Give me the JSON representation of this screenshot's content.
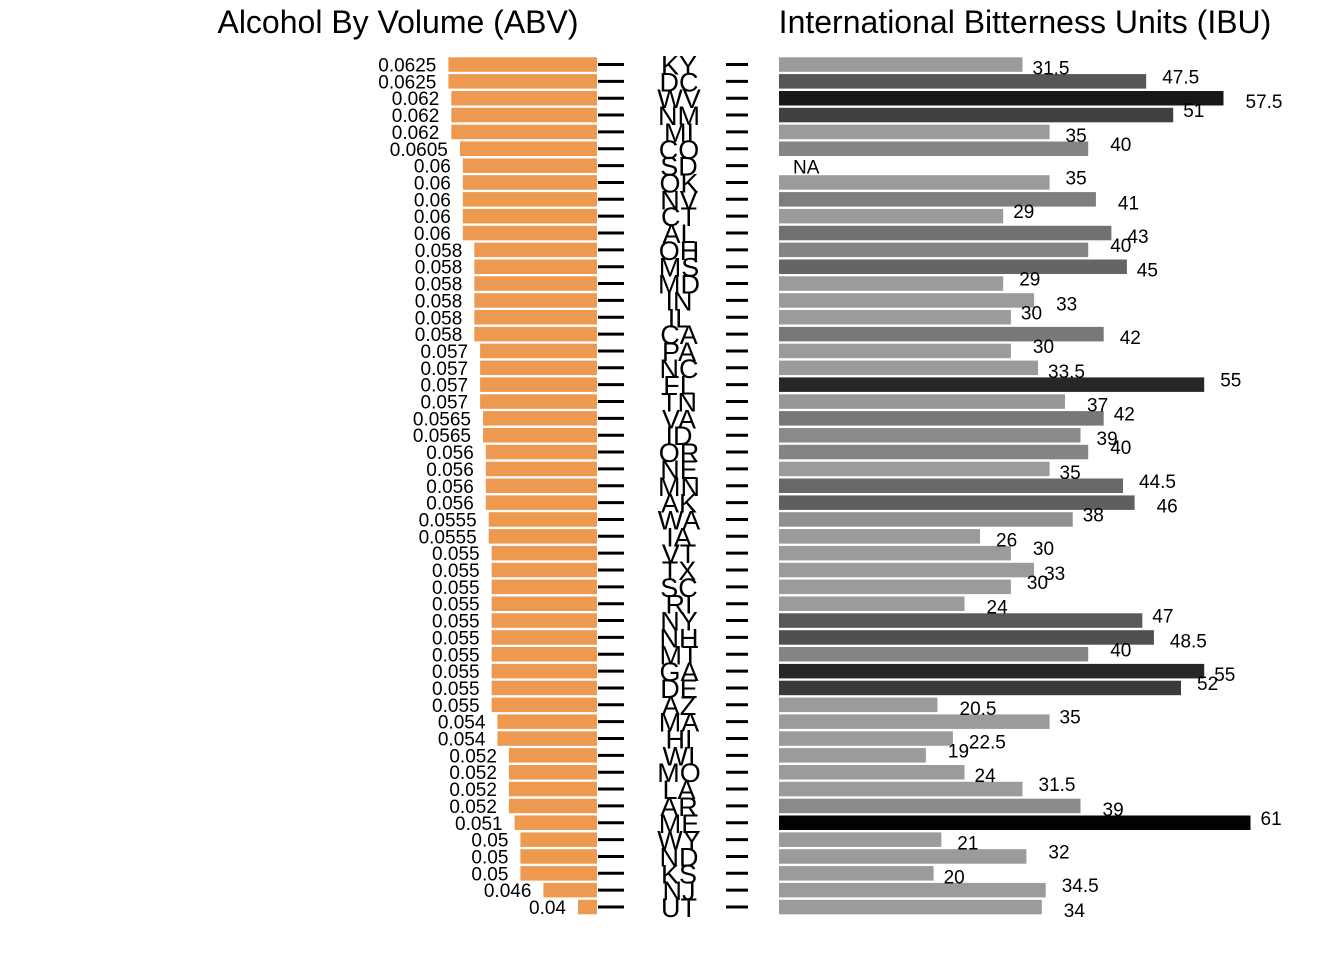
{
  "chart_data": [
    {
      "type": "bar",
      "orientation": "horizontal",
      "title": "Alcohol By Volume (ABV)",
      "categories": [
        "KY",
        "DC",
        "WV",
        "NM",
        "MI",
        "CO",
        "SD",
        "OK",
        "NV",
        "CT",
        "AL",
        "OH",
        "MS",
        "MD",
        "IN",
        "IL",
        "CA",
        "PA",
        "NC",
        "FL",
        "TN",
        "VA",
        "ID",
        "OR",
        "NE",
        "MN",
        "AK",
        "WA",
        "IA",
        "VT",
        "TX",
        "SC",
        "RI",
        "NY",
        "NH",
        "MT",
        "GA",
        "DE",
        "AZ",
        "MA",
        "HI",
        "WI",
        "MO",
        "LA",
        "AR",
        "ME",
        "WY",
        "ND",
        "KS",
        "NJ",
        "UT"
      ],
      "values": [
        0.0625,
        0.0625,
        0.062,
        0.062,
        0.062,
        0.0605,
        0.06,
        0.06,
        0.06,
        0.06,
        0.06,
        0.058,
        0.058,
        0.058,
        0.058,
        0.058,
        0.058,
        0.057,
        0.057,
        0.057,
        0.057,
        0.0565,
        0.0565,
        0.056,
        0.056,
        0.056,
        0.056,
        0.0555,
        0.0555,
        0.055,
        0.055,
        0.055,
        0.055,
        0.055,
        0.055,
        0.055,
        0.055,
        0.055,
        0.055,
        0.054,
        0.054,
        0.052,
        0.052,
        0.052,
        0.052,
        0.051,
        0.05,
        0.05,
        0.05,
        0.046,
        0.04
      ],
      "labels": [
        "0.0625",
        "0.0625",
        "0.062",
        "0.062",
        "0.062",
        "0.0605",
        "0.06",
        "0.06",
        "0.06",
        "0.06",
        "0.06",
        "0.058",
        "0.058",
        "0.058",
        "0.058",
        "0.058",
        "0.058",
        "0.057",
        "0.057",
        "0.057",
        "0.057",
        "0.0565",
        "0.0565",
        "0.056",
        "0.056",
        "0.056",
        "0.056",
        "0.0555",
        "0.0555",
        "0.055",
        "0.055",
        "0.055",
        "0.055",
        "0.055",
        "0.055",
        "0.055",
        "0.055",
        "0.055",
        "0.055",
        "0.054",
        "0.054",
        "0.052",
        "0.052",
        "0.052",
        "0.052",
        "0.051",
        "0.05",
        "0.05",
        "0.05",
        "0.046",
        "0.04"
      ],
      "bar_color": "#EE9950",
      "direction": "extends leftward from state labels",
      "grid": false
    },
    {
      "type": "bar",
      "orientation": "horizontal",
      "title": "International Bitterness Units (IBU)",
      "categories": [
        "KY",
        "DC",
        "WV",
        "NM",
        "MI",
        "CO",
        "SD",
        "OK",
        "NV",
        "CT",
        "AL",
        "OH",
        "MS",
        "MD",
        "IN",
        "IL",
        "CA",
        "PA",
        "NC",
        "FL",
        "TN",
        "VA",
        "ID",
        "OR",
        "NE",
        "MN",
        "AK",
        "WA",
        "IA",
        "VT",
        "TX",
        "SC",
        "RI",
        "NY",
        "NH",
        "MT",
        "GA",
        "DE",
        "AZ",
        "MA",
        "HI",
        "WI",
        "MO",
        "LA",
        "AR",
        "ME",
        "WY",
        "ND",
        "KS",
        "NJ",
        "UT"
      ],
      "values": [
        31.5,
        47.5,
        57.5,
        51,
        35,
        40,
        null,
        35,
        41,
        29,
        43,
        40,
        45,
        29,
        33,
        30,
        42,
        30,
        33.5,
        55,
        37,
        42,
        39,
        40,
        35,
        44.5,
        46,
        38,
        26,
        30,
        33,
        30,
        24,
        47,
        48.5,
        40,
        55,
        52,
        20.5,
        35,
        22.5,
        19,
        24,
        31.5,
        39,
        61,
        21,
        32,
        20,
        34.5,
        34
      ],
      "labels": [
        "31.5",
        "47.5",
        "57.5",
        "51",
        "35",
        "40",
        "NA",
        "35",
        "41",
        "29",
        "43",
        "40",
        "45",
        "29",
        "33",
        "30",
        "42",
        "30",
        "33.5",
        "55",
        "37",
        "42",
        "39",
        "40",
        "35",
        "44.5",
        "46",
        "38",
        "26",
        "30",
        "33",
        "30",
        "24",
        "47",
        "48.5",
        "40",
        "55",
        "52",
        "20.5",
        "35",
        "22.5",
        "19",
        "24",
        "31.5",
        "39",
        "61",
        "21",
        "32",
        "20",
        "34.5",
        "34"
      ],
      "color_scale": "grayscale: darker = higher IBU",
      "grid": false
    }
  ]
}
